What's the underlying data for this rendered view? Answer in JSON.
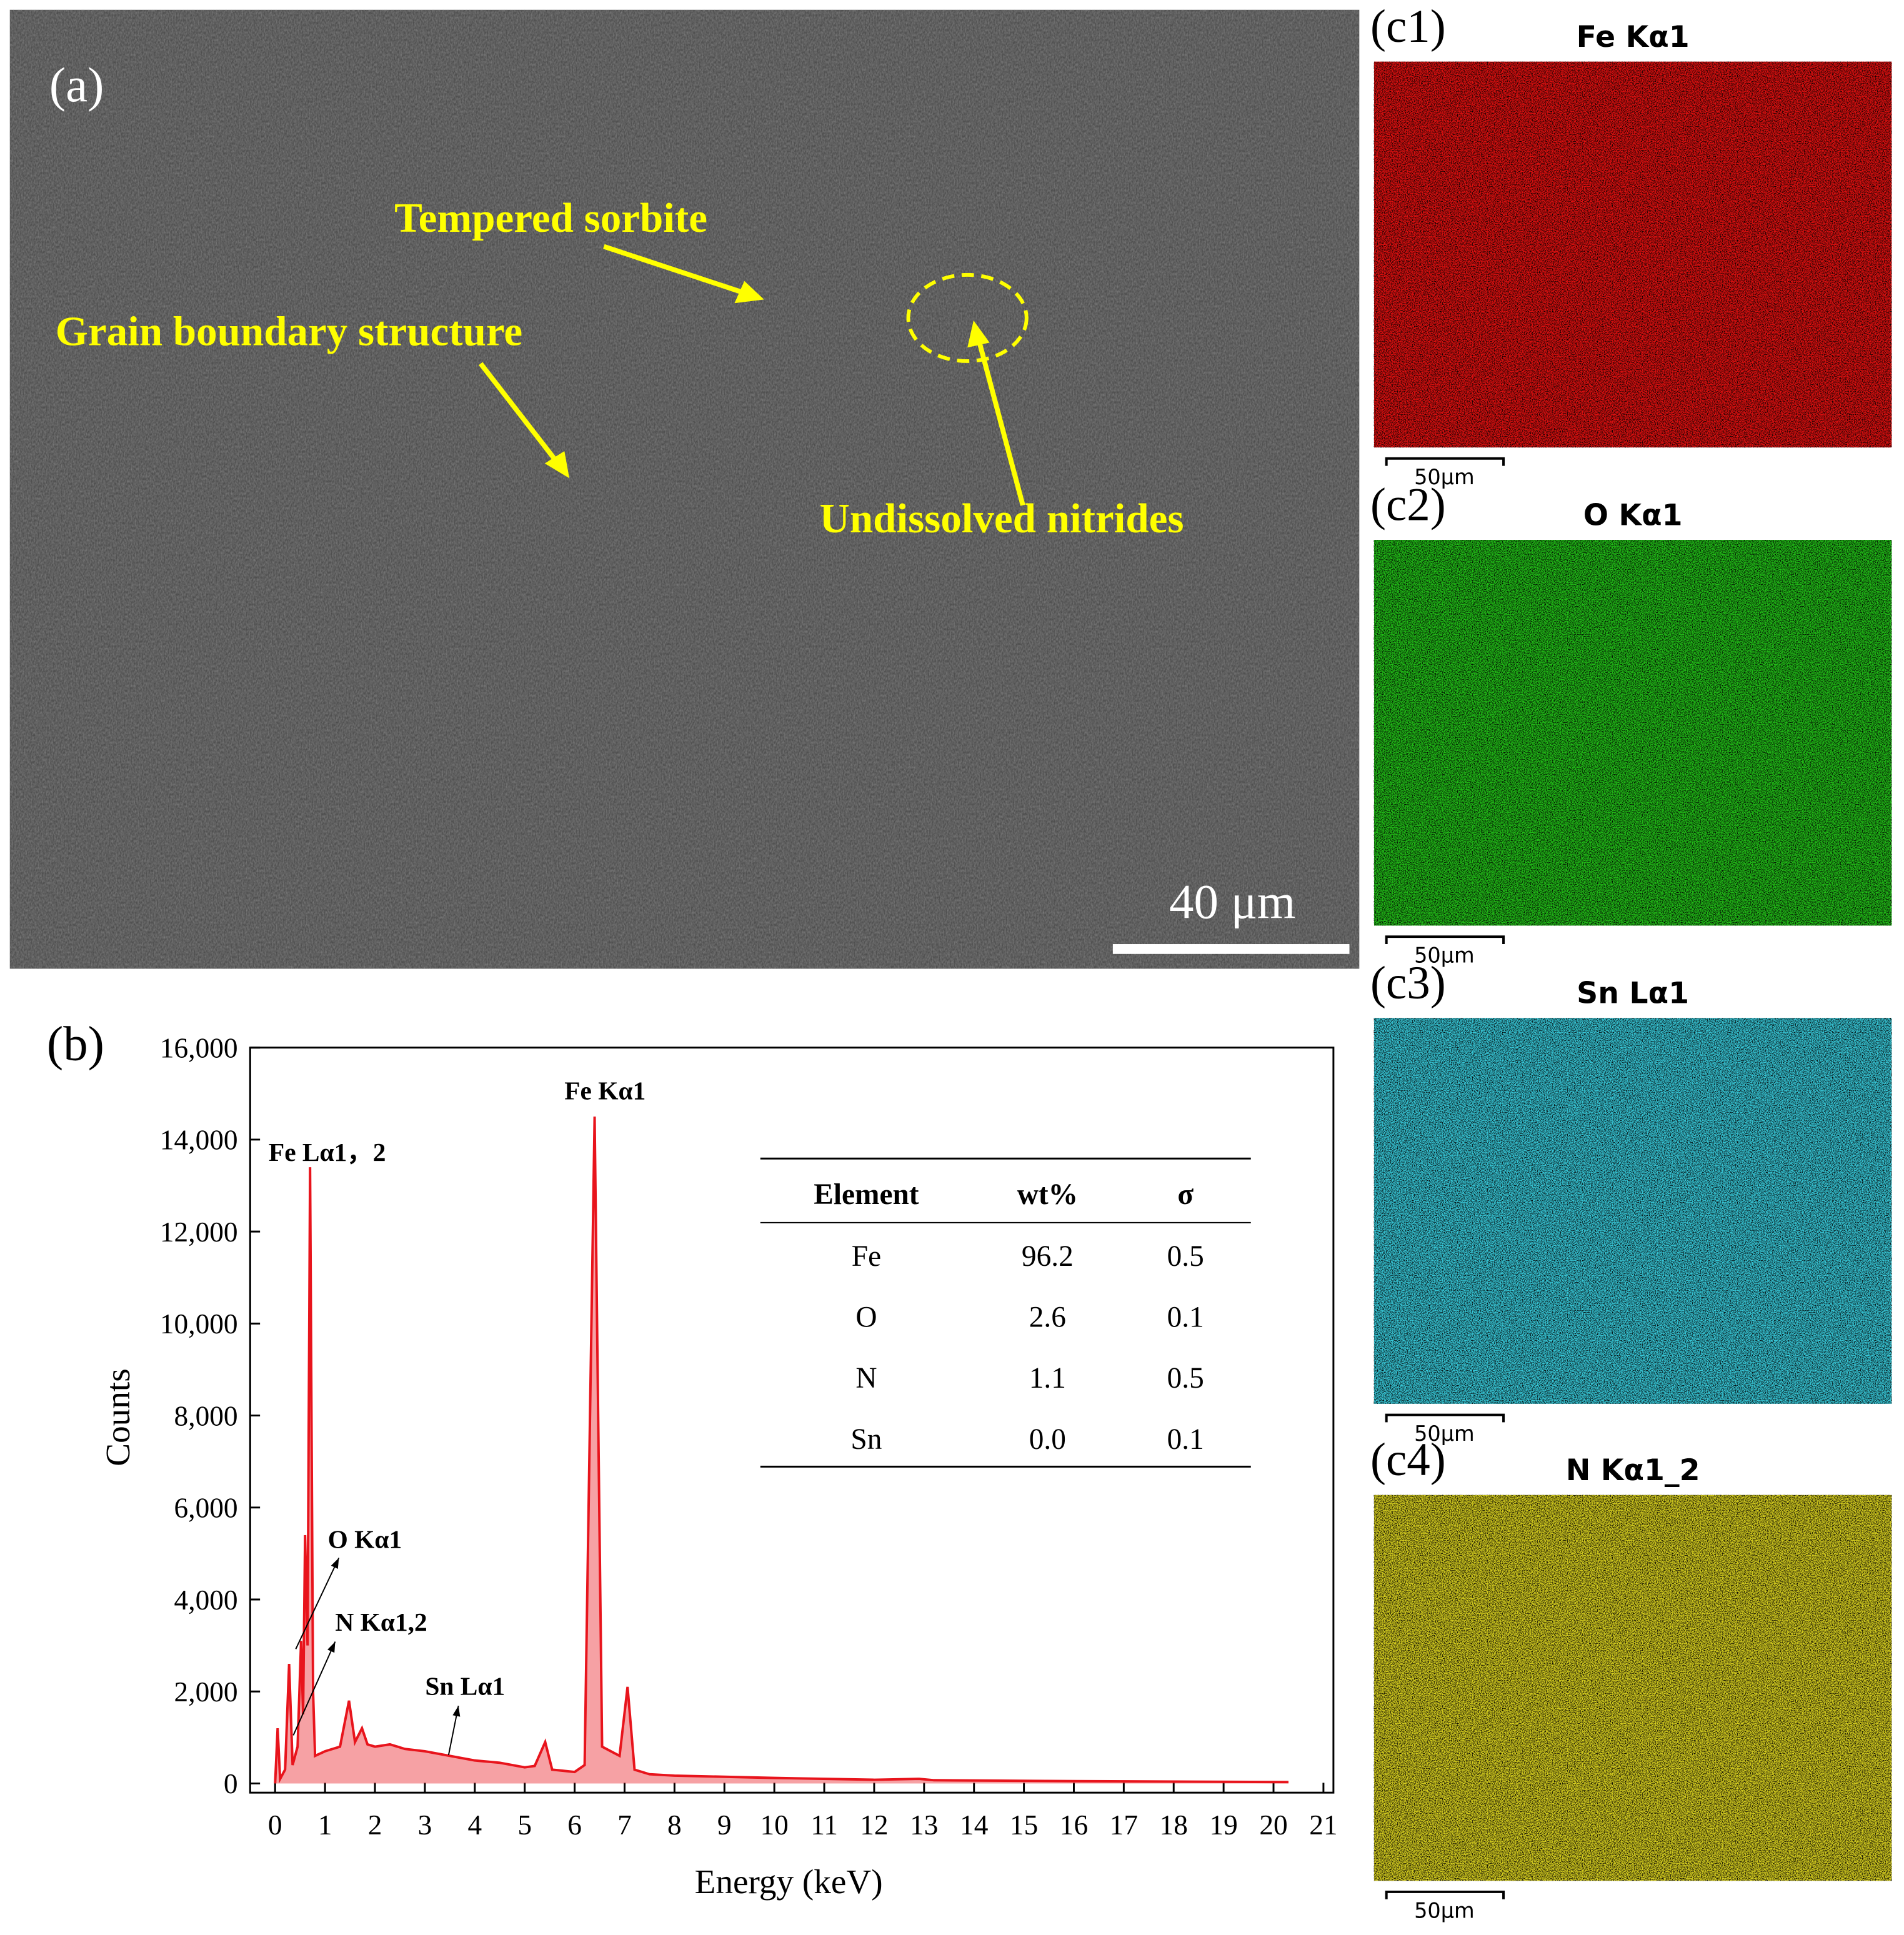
{
  "panel_a": {
    "label": "(a)",
    "annotations": [
      "Tempered sorbite",
      "Grain boundary structure",
      "Undissolved nitrides"
    ],
    "scale_bar": "40 μm"
  },
  "maps": [
    {
      "label": "(c1)",
      "title": "Fe Kα1",
      "scale_bar": "50μm",
      "color": "#e01010"
    },
    {
      "label": "(c2)",
      "title": "O Kα1",
      "scale_bar": "50μm",
      "color": "#22c018"
    },
    {
      "label": "(c3)",
      "title": "Sn Lα1",
      "scale_bar": "50μm",
      "color": "#38c8d8"
    },
    {
      "label": "(c4)",
      "title": "N Kα1_2",
      "scale_bar": "50μm",
      "color": "#d8d020"
    }
  ],
  "chart_data": {
    "type": "area",
    "label": "(b)",
    "x_label": "Energy (keV)",
    "y_label": "Counts",
    "x": [
      0,
      0.05,
      0.1,
      0.2,
      0.28,
      0.35,
      0.45,
      0.52,
      0.56,
      0.6,
      0.65,
      0.7,
      0.76,
      0.8,
      1.0,
      1.3,
      1.48,
      1.6,
      1.74,
      1.85,
      2.0,
      2.3,
      2.6,
      3.0,
      3.5,
      4.0,
      4.5,
      5.0,
      5.2,
      5.41,
      5.55,
      6.0,
      6.2,
      6.4,
      6.55,
      6.9,
      7.06,
      7.2,
      7.5,
      8,
      10,
      12,
      12.9,
      13.2,
      16,
      20.3
    ],
    "series": [
      {
        "color": "#e8141c",
        "values": [
          0,
          1200,
          100,
          300,
          2600,
          400,
          800,
          3100,
          1500,
          5400,
          3000,
          13400,
          2000,
          600,
          700,
          800,
          1800,
          900,
          1200,
          850,
          800,
          850,
          750,
          700,
          600,
          500,
          450,
          350,
          380,
          900,
          300,
          250,
          400,
          14500,
          800,
          600,
          2100,
          300,
          200,
          170,
          120,
          80,
          100,
          70,
          50,
          30
        ]
      }
    ],
    "annotations": [
      "Fe Lα1，2",
      "Fe Kα1",
      "O Kα1",
      "N Kα1,2",
      "Sn Lα1"
    ],
    "xlim": [
      -0.5,
      21.2
    ],
    "xticks": [
      0,
      1,
      2,
      3,
      4,
      5,
      6,
      7,
      8,
      9,
      10,
      11,
      12,
      13,
      14,
      15,
      16,
      17,
      18,
      19,
      20,
      21
    ],
    "ylim": [
      -200,
      16000
    ],
    "yticks": [
      0,
      {
        "value": 2000,
        "label": "2,000"
      },
      {
        "value": 4000,
        "label": "4,000"
      },
      {
        "value": 6000,
        "label": "6,000"
      },
      {
        "value": 8000,
        "label": "8,000"
      },
      {
        "value": 10000,
        "label": "10,000"
      },
      {
        "value": 12000,
        "label": "12,000"
      },
      {
        "value": 14000,
        "label": "14,000"
      },
      {
        "value": 16000,
        "label": "16,000"
      }
    ]
  },
  "table": {
    "header": [
      "Element",
      "wt%",
      "σ"
    ],
    "rows": [
      [
        "Fe",
        "96.2",
        "0.5"
      ],
      [
        "O",
        "2.6",
        "0.1"
      ],
      [
        "N",
        "1.1",
        "0.5"
      ],
      [
        "Sn",
        "0.0",
        "0.1"
      ]
    ]
  }
}
